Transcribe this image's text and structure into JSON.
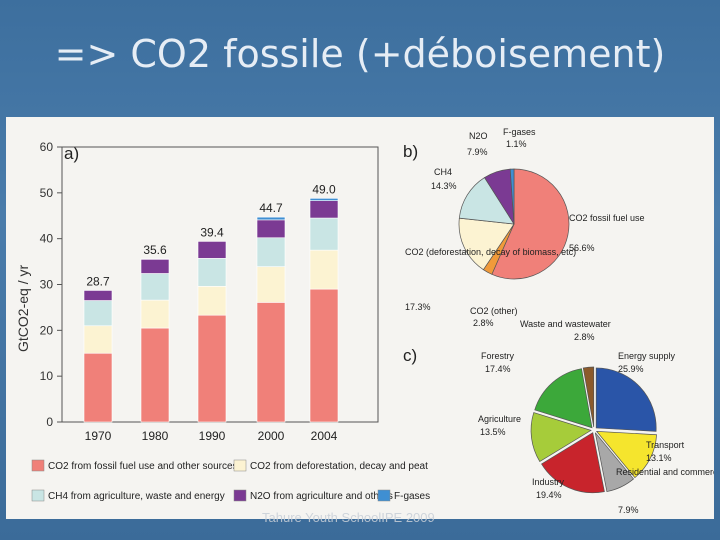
{
  "slide": {
    "title": "=> CO2 fossile (+déboisement)",
    "footer": "Tahure Youth SchoolIPE 2009"
  },
  "chart_data": [
    {
      "type": "bar",
      "panel_label": "a)",
      "ylabel": "GtCO2-eq / yr",
      "ylim": [
        0,
        60
      ],
      "yticks": [
        0,
        10,
        20,
        30,
        40,
        50,
        60
      ],
      "categories": [
        "1970",
        "1980",
        "1990",
        "2000",
        "2004"
      ],
      "totals": [
        "28.7",
        "35.6",
        "39.4",
        "44.7",
        "49.0"
      ],
      "series": [
        {
          "name": "CO2 from fossil fuel use and other sources",
          "color": "#f08079",
          "values": [
            15.0,
            20.5,
            23.3,
            26.1,
            29.0
          ]
        },
        {
          "name": "CO2 from deforestation, decay and peat",
          "color": "#fcf3d2",
          "values": [
            6.0,
            6.1,
            6.3,
            7.8,
            8.5
          ]
        },
        {
          "name": "CH4 from agriculture, waste and energy",
          "color": "#c9e5e4",
          "values": [
            5.5,
            5.8,
            6.1,
            6.3,
            7.0
          ]
        },
        {
          "name": "N2O from agriculture and others",
          "color": "#7b3a93",
          "values": [
            2.2,
            3.1,
            3.7,
            3.9,
            3.8
          ]
        },
        {
          "name": "F-gases",
          "color": "#3f8fd2",
          "values": [
            0.0,
            0.1,
            0.0,
            0.6,
            0.5
          ]
        }
      ],
      "legend": "bottom"
    },
    {
      "type": "pie",
      "panel_label": "b)",
      "slices": [
        {
          "label": "CO2 fossil fuel use",
          "pct": "56.6%",
          "value": 56.6,
          "color": "#f08079"
        },
        {
          "label": "CO2 (other)",
          "pct": "2.8%",
          "value": 2.8,
          "color": "#f09a3a"
        },
        {
          "label": "CO2 (deforestation, decay of biomass, etc)",
          "pct": "17.3%",
          "value": 17.3,
          "color": "#fcf3d2"
        },
        {
          "label": "CH4",
          "pct": "14.3%",
          "value": 14.3,
          "color": "#c9e5e4"
        },
        {
          "label": "N2O",
          "pct": "7.9%",
          "value": 7.9,
          "color": "#7b3a93"
        },
        {
          "label": "F-gases",
          "pct": "1.1%",
          "value": 1.1,
          "color": "#3f8fd2"
        }
      ]
    },
    {
      "type": "pie",
      "panel_label": "c)",
      "slices": [
        {
          "label": "Energy supply",
          "pct": "25.9%",
          "value": 25.9,
          "color": "#2a55a8"
        },
        {
          "label": "Transport",
          "pct": "13.1%",
          "value": 13.1,
          "color": "#f5e52d"
        },
        {
          "label": "Residential and commercial buildings",
          "pct": "7.9%",
          "value": 7.9,
          "color": "#a8a8a8"
        },
        {
          "label": "Industry",
          "pct": "19.4%",
          "value": 19.4,
          "color": "#c8242c"
        },
        {
          "label": "Agriculture",
          "pct": "13.5%",
          "value": 13.5,
          "color": "#a6cc3a"
        },
        {
          "label": "Forestry",
          "pct": "17.4%",
          "value": 17.4,
          "color": "#3ca83a"
        },
        {
          "label": "Waste and wastewater",
          "pct": "2.8%",
          "value": 2.8,
          "color": "#8b5a2b"
        }
      ]
    }
  ]
}
